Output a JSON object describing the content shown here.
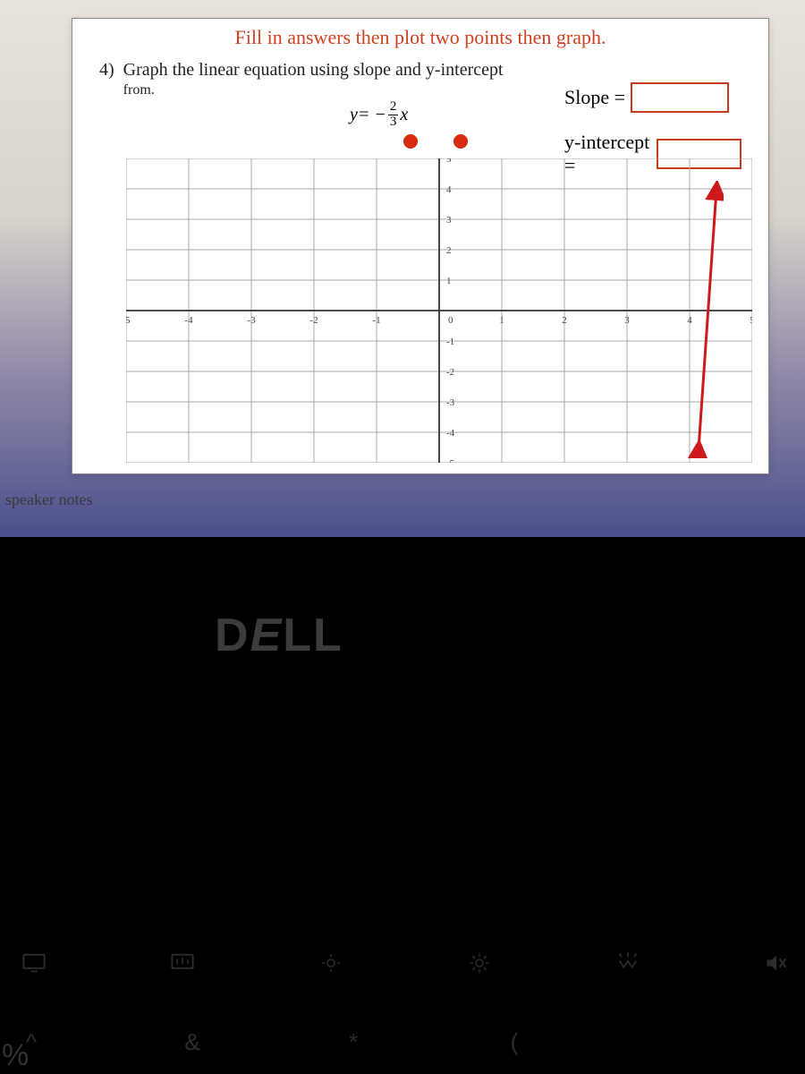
{
  "instruction": {
    "text": "Fill in answers then plot two points then graph.",
    "color": "#d04020",
    "fontsize": 22
  },
  "problem": {
    "number": "4)",
    "text": "Graph the linear equation using slope and y-intercept",
    "sub": "from."
  },
  "equation": {
    "lhs": "y",
    "eq": " = −",
    "frac_num": "2",
    "frac_den": "3",
    "var": "x"
  },
  "dots": {
    "color": "#d82b0f",
    "count": 2
  },
  "answers": {
    "slope_label": "Slope =",
    "yint_label": "y-intercept =",
    "box_border": "#c73c1c"
  },
  "grid": {
    "type": "cartesian",
    "xlim": [
      -5,
      5
    ],
    "ylim": [
      -5,
      5
    ],
    "xtick_step": 1,
    "ytick_step": 1,
    "axis_color": "#333333",
    "grid_color": "#b0a8a0",
    "background_color": "#ffffff",
    "tick_fontsize": 11,
    "tick_color": "#444444",
    "x_labels": [
      "-5",
      "-4",
      "-3",
      "-2",
      "-1",
      "0",
      "1",
      "2",
      "3",
      "4",
      "5"
    ],
    "y_labels_pos": [
      "1",
      "2",
      "3",
      "4",
      "5"
    ],
    "y_labels_neg": [
      "-1",
      "-2",
      "-3",
      "-4",
      "-5"
    ]
  },
  "arrow": {
    "color": "#cc1a1a"
  },
  "speaker_notes": "speaker notes",
  "dell": {
    "text": "DELL",
    "color": "#3a3c3e"
  },
  "fn_keys": {
    "icons": [
      "monitor",
      "monitor-bars",
      "brightness-down",
      "brightness-up",
      "backlight",
      "mute"
    ],
    "icon_color": "#2a2c2e"
  },
  "sym_keys": {
    "items": [
      "%",
      "^",
      "&",
      "*",
      "("
    ],
    "color": "#2a2c2e"
  },
  "left_edge_sym": "%"
}
